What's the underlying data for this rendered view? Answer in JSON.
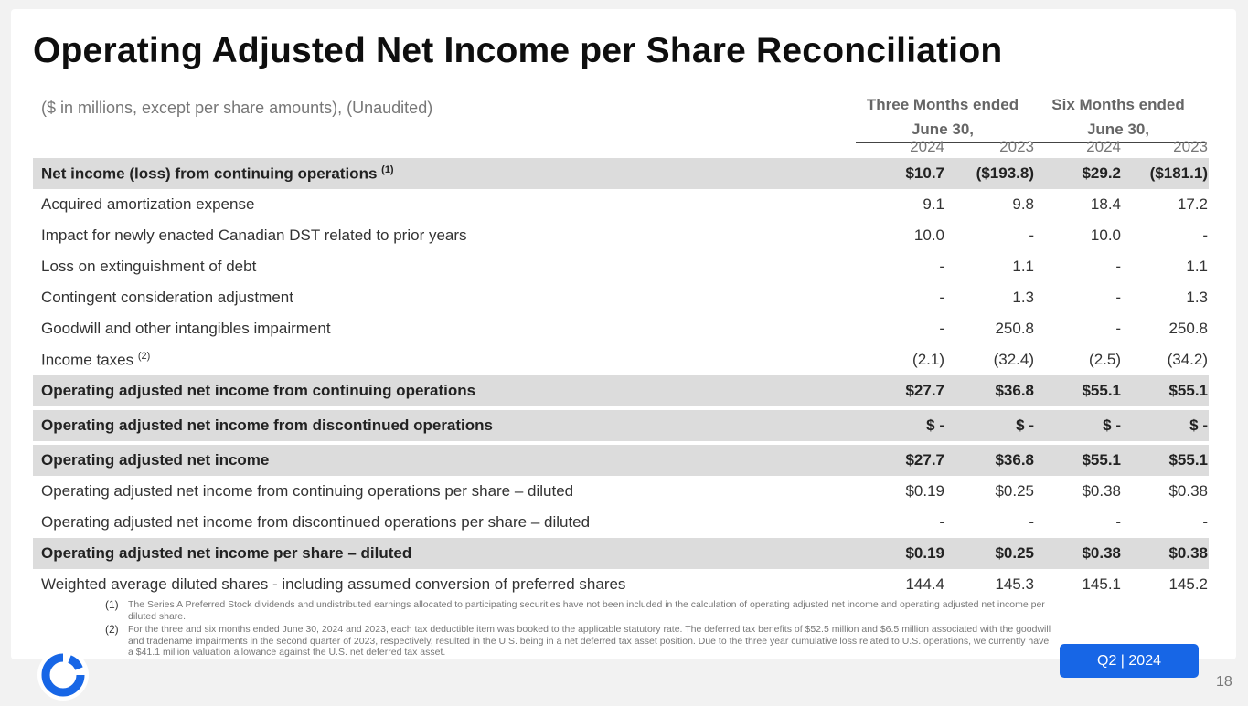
{
  "title": "Operating Adjusted Net Income per Share Reconciliation",
  "subtitle": "($ in millions, except per share amounts), (Unaudited)",
  "periods": {
    "three": {
      "line1": "Three Months ended",
      "line2": "June 30,"
    },
    "six": {
      "line1": "Six Months ended",
      "line2": "June 30,"
    }
  },
  "years": [
    "2024",
    "2023",
    "2024",
    "2023"
  ],
  "rows": [
    {
      "label": "Net income (loss) from continuing operations",
      "sup": "(1)",
      "values": [
        "$10.7",
        "($193.8)",
        "$29.2",
        "($181.1)"
      ],
      "shade": true
    },
    {
      "label": "Acquired amortization expense",
      "sup": "",
      "values": [
        "9.1",
        "9.8",
        "18.4",
        "17.2"
      ],
      "shade": false
    },
    {
      "label": "Impact for newly enacted Canadian DST related to prior years",
      "sup": "",
      "values": [
        "10.0",
        "-",
        "10.0",
        "-"
      ],
      "shade": false
    },
    {
      "label": "Loss on extinguishment of debt",
      "sup": "",
      "values": [
        "-",
        "1.1",
        "-",
        "1.1"
      ],
      "shade": false
    },
    {
      "label": "Contingent consideration adjustment",
      "sup": "",
      "values": [
        "-",
        "1.3",
        "-",
        "1.3"
      ],
      "shade": false
    },
    {
      "label": "Goodwill and other intangibles impairment",
      "sup": "",
      "values": [
        "-",
        "250.8",
        "-",
        "250.8"
      ],
      "shade": false
    },
    {
      "label": "Income taxes",
      "sup": "(2)",
      "values": [
        "(2.1)",
        "(32.4)",
        "(2.5)",
        "(34.2)"
      ],
      "shade": false
    },
    {
      "label": "Operating adjusted net income from continuing operations",
      "sup": "",
      "values": [
        "$27.7",
        "$36.8",
        "$55.1",
        "$55.1"
      ],
      "shade": true
    },
    {
      "label": "Operating adjusted net income from discontinued operations",
      "sup": "",
      "values": [
        "$ -",
        "$ -",
        "$ -",
        "$ -"
      ],
      "shade": true
    },
    {
      "label": "Operating adjusted net income",
      "sup": "",
      "values": [
        "$27.7",
        "$36.8",
        "$55.1",
        "$55.1"
      ],
      "shade": true
    },
    {
      "label": "Operating adjusted net income from continuing operations per share – diluted",
      "sup": "",
      "values": [
        "$0.19",
        "$0.25",
        "$0.38",
        "$0.38"
      ],
      "shade": false
    },
    {
      "label": "Operating adjusted net income from discontinued operations per share – diluted",
      "sup": "",
      "values": [
        "-",
        "-",
        "-",
        "-"
      ],
      "shade": false
    },
    {
      "label": "Operating adjusted net income per share – diluted",
      "sup": "",
      "values": [
        "$0.19",
        "$0.25",
        "$0.38",
        "$0.38"
      ],
      "shade": true
    },
    {
      "label": "Weighted average diluted shares - including assumed conversion of preferred shares",
      "sup": "",
      "values": [
        "144.4",
        "145.3",
        "145.1",
        "145.2"
      ],
      "shade": false
    }
  ],
  "footnotes": [
    {
      "num": "(1)",
      "text": "The Series A Preferred Stock dividends and undistributed earnings allocated to participating securities have not been included in the calculation of operating adjusted net income and operating adjusted net income per diluted share."
    },
    {
      "num": "(2)",
      "text": "For the three and six months ended June 30, 2024 and 2023, each tax deductible item was booked to the applicable statutory rate. The deferred tax benefits of $52.5 million and $6.5 million associated with the goodwill and tradename impairments in the second quarter of 2023, respectively, resulted in the U.S. being in a net deferred tax asset position. Due to the three year cumulative loss related to U.S. operations, we currently have a $41.1 million valuation allowance against the U.S. net deferred tax asset."
    }
  ],
  "badge": "Q2 | 2024",
  "page_number": "18",
  "colors": {
    "accent": "#1766e6",
    "shade": "#dcdcdc",
    "logo": "#1766e6"
  },
  "logo_icon": "ring-logo-icon"
}
